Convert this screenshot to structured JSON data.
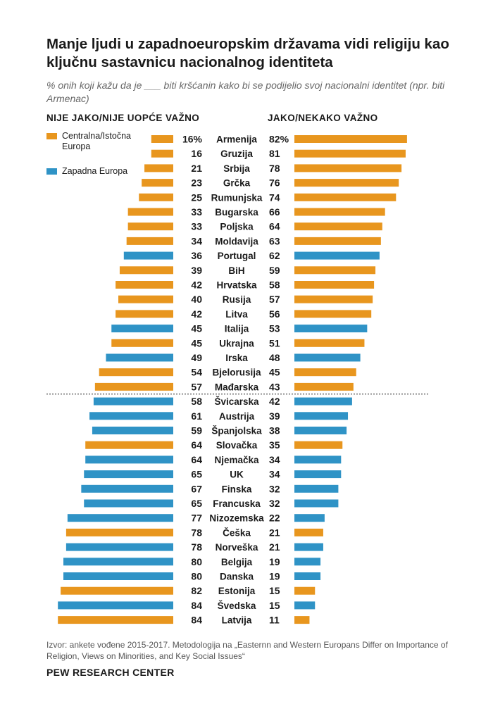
{
  "header": {
    "title": "Manje ljudi u zapadnoeuropskim državama vidi religiju kao ključnu sastavnicu nacionalnog identiteta",
    "subtitle": "% onih koji kažu da  je ___ biti kršćanin kako bi se podijelio svoj nacionalni identitet (npr. biti Armenac)"
  },
  "legend": {
    "central_eastern": "Centralna/Istočna Europa",
    "western": "Zapadna Europa"
  },
  "colors": {
    "central_eastern": "#E8961E",
    "western": "#2F93C6",
    "divider": "#555555"
  },
  "chart_data": {
    "type": "bar",
    "orientation": "diverging-horizontal",
    "left_label": "NIJE JAKO/NIJE UOPĆE VAŽNO",
    "right_label": "JAKO/NEKAKO VAŽNO",
    "unit_suffix": "%",
    "categories": [
      "Armenija",
      "Gruzija",
      "Srbija",
      "Grčka",
      "Rumunjska",
      "Bugarska",
      "Poljska",
      "Moldavija",
      "Portugal",
      "BiH",
      "Hrvatska",
      "Rusija",
      "Litva",
      "Italija",
      "Ukrajna",
      "Irska",
      "Bjelorusija",
      "Mađarska",
      "Švicarska",
      "Austrija",
      "Španjolska",
      "Slovačka",
      "Njemačka",
      "UK",
      "Finska",
      "Francuska",
      "Nizozemska",
      "Češka",
      "Norveška",
      "Belgija",
      "Danska",
      "Estonija",
      "Švedska",
      "Latvija"
    ],
    "region": [
      "central_eastern",
      "central_eastern",
      "central_eastern",
      "central_eastern",
      "central_eastern",
      "central_eastern",
      "central_eastern",
      "central_eastern",
      "western",
      "central_eastern",
      "central_eastern",
      "central_eastern",
      "central_eastern",
      "western",
      "central_eastern",
      "western",
      "central_eastern",
      "central_eastern",
      "western",
      "western",
      "western",
      "central_eastern",
      "western",
      "western",
      "western",
      "western",
      "western",
      "central_eastern",
      "western",
      "western",
      "western",
      "central_eastern",
      "western",
      "central_eastern"
    ],
    "series": [
      {
        "name": "NIJE JAKO/NIJE UOPĆE VAŽNO",
        "values": [
          16,
          16,
          21,
          23,
          25,
          33,
          33,
          34,
          36,
          39,
          42,
          40,
          42,
          45,
          45,
          49,
          54,
          57,
          58,
          61,
          59,
          64,
          64,
          65,
          67,
          65,
          77,
          78,
          78,
          80,
          80,
          82,
          84,
          84
        ]
      },
      {
        "name": "JAKO/NEKAKO VAŽNO",
        "values": [
          82,
          81,
          78,
          76,
          74,
          66,
          64,
          63,
          62,
          59,
          58,
          57,
          56,
          53,
          51,
          48,
          45,
          43,
          42,
          39,
          38,
          35,
          34,
          34,
          32,
          32,
          22,
          21,
          21,
          19,
          19,
          15,
          15,
          11
        ]
      }
    ],
    "divider_after_index": 17
  },
  "footer": {
    "source": "Izvor: ankete vođene 2015-2017. Metodologija na „Easternn and Western Europans Differ on Importance of Religion, Views on Minorities, and Key Social Issues“",
    "brand": "PEW RESEARCH CENTER"
  }
}
